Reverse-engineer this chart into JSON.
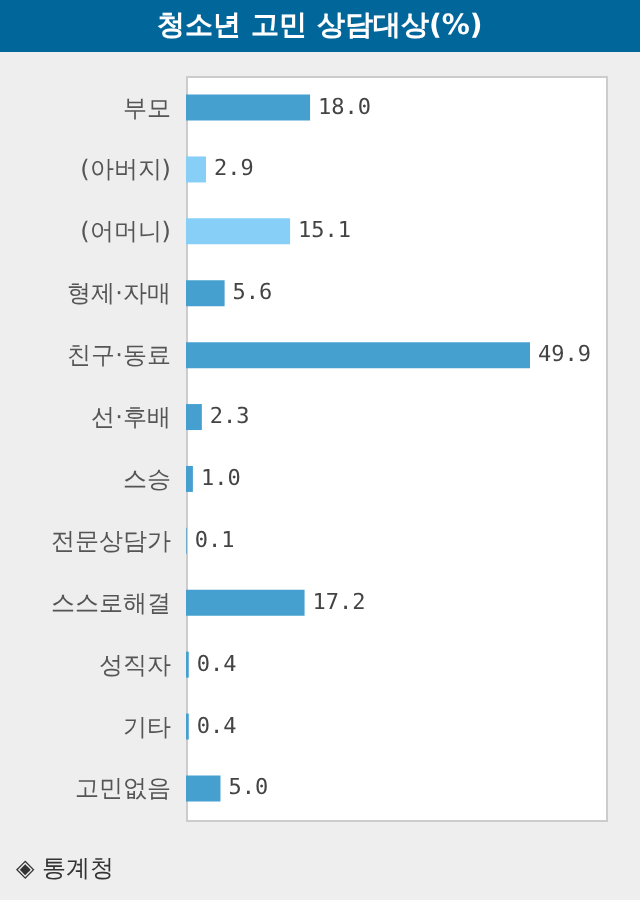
{
  "chart_data": {
    "type": "bar",
    "orientation": "horizontal",
    "title": "청소년 고민 상담대상(%)",
    "categories": [
      "부모",
      "(아버지)",
      "(어머니)",
      "형제·자매",
      "친구·동료",
      "선·후배",
      "스승",
      "전문상담가",
      "스스로해결",
      "성직자",
      "기타",
      "고민없음"
    ],
    "values": [
      18.0,
      2.9,
      15.1,
      5.6,
      49.9,
      2.3,
      1.0,
      0.1,
      17.2,
      0.4,
      0.4,
      5.0
    ],
    "colors": [
      "#459fcf",
      "#88cff8",
      "#88cff8",
      "#459fcf",
      "#459fcf",
      "#459fcf",
      "#459fcf",
      "#459fcf",
      "#459fcf",
      "#459fcf",
      "#459fcf",
      "#459fcf"
    ],
    "value_labels": [
      "18.0",
      "2.9",
      "15.1",
      "5.6",
      "49.9",
      "2.3",
      "1.0",
      "0.1",
      "17.2",
      "0.4",
      "0.4",
      "5.0"
    ],
    "grid": false,
    "annotations": [
      "◈ 통계청"
    ]
  }
}
